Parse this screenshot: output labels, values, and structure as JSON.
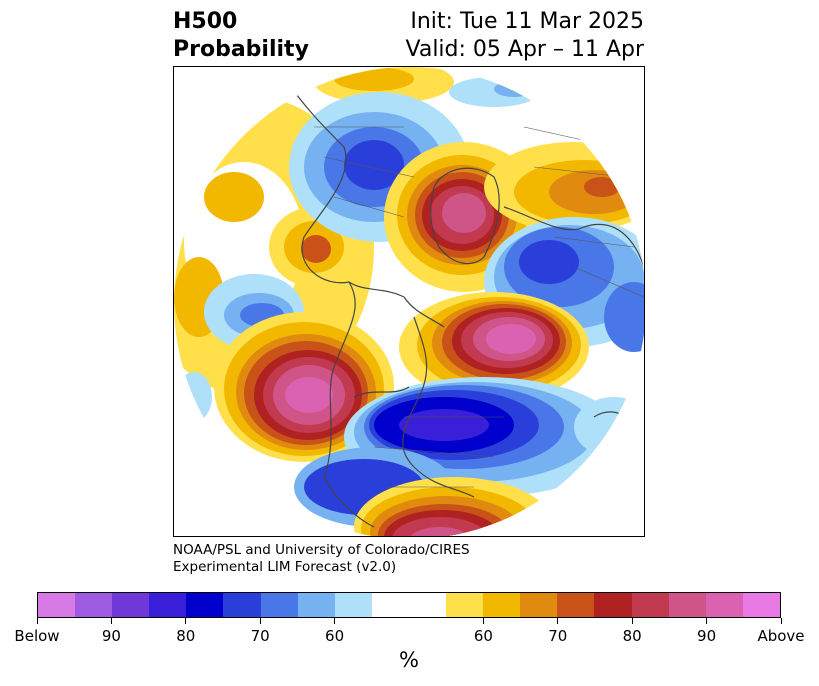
{
  "title": {
    "line1": "H500",
    "line2": "Probability",
    "init": "Init: Tue 11 Mar 2025",
    "valid": "Valid: 05 Apr – 11 Apr"
  },
  "credit": {
    "line1": "NOAA/PSL and University of Colorado/CIRES",
    "line2": "Experimental LIM Forecast (v2.0)"
  },
  "colorbar": {
    "unit": "%",
    "below_colors": [
      "#d77ae6",
      "#9e5ae0",
      "#7038d6",
      "#3a1fd8",
      "#0000cc",
      "#2a3fd9",
      "#4a77e8",
      "#76b2f2",
      "#aee0fa"
    ],
    "neutral_color": "#ffffff",
    "above_colors": [
      "#ffe04a",
      "#f2b800",
      "#e08a10",
      "#c85218",
      "#b02222",
      "#c23a50",
      "#cf5588",
      "#da62b0",
      "#e879e4"
    ],
    "tick_labels": [
      "Below",
      "90",
      "80",
      "70",
      "60",
      "60",
      "70",
      "80",
      "90",
      "Above"
    ]
  }
}
